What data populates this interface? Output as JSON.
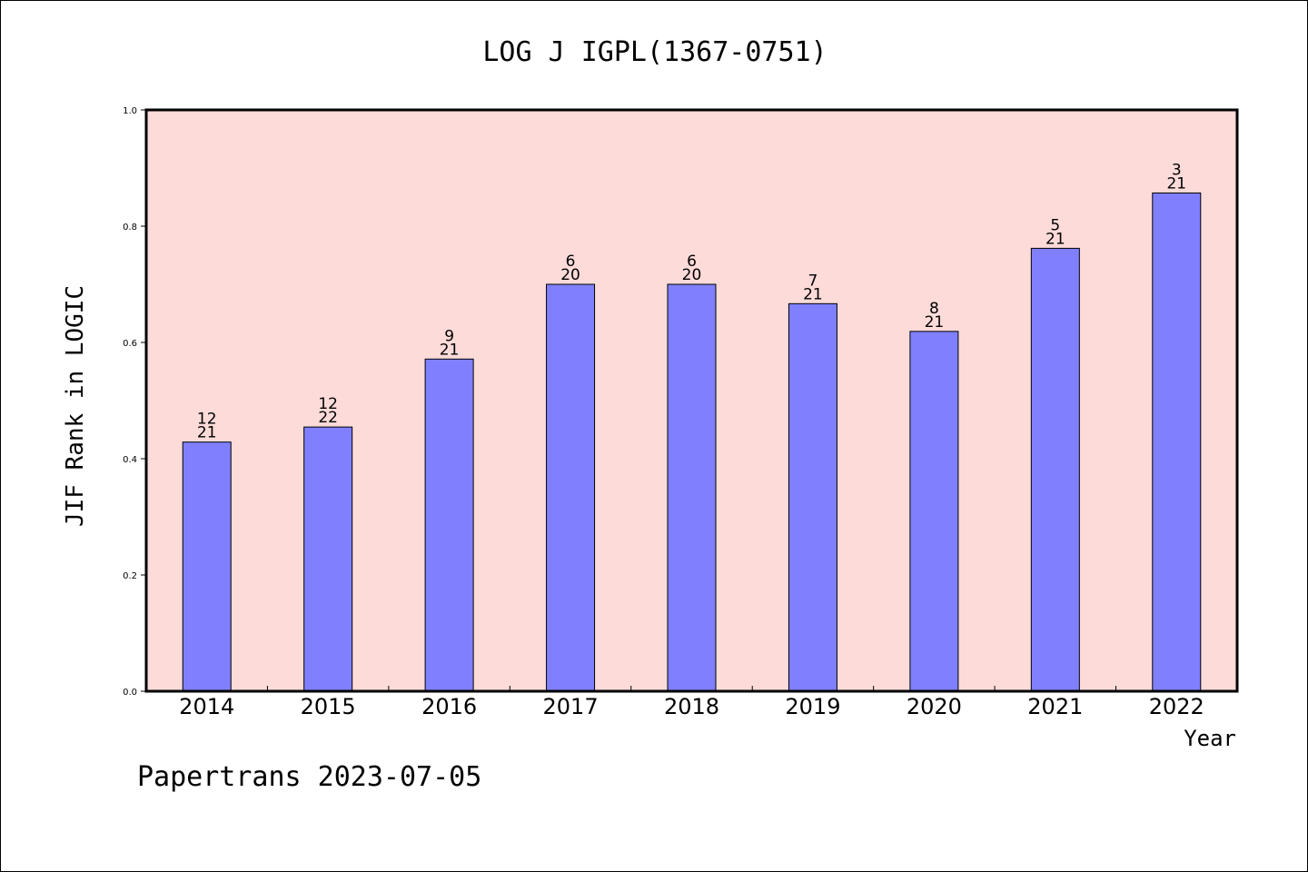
{
  "chart_data": {
    "type": "bar",
    "title": "LOG J IGPL(1367-0751)",
    "xlabel": "Year",
    "ylabel": "JIF Rank in LOGIC",
    "footer": "Papertrans 2023-07-05",
    "categories": [
      "2014",
      "2015",
      "2016",
      "2017",
      "2018",
      "2019",
      "2020",
      "2021",
      "2022"
    ],
    "values": [
      0.4286,
      0.4545,
      0.5714,
      0.7,
      0.7,
      0.6667,
      0.619,
      0.7619,
      0.8571
    ],
    "rank_labels": [
      {
        "rank": "12",
        "total": "21"
      },
      {
        "rank": "12",
        "total": "22"
      },
      {
        "rank": "9",
        "total": "21"
      },
      {
        "rank": "6",
        "total": "20"
      },
      {
        "rank": "6",
        "total": "20"
      },
      {
        "rank": "7",
        "total": "21"
      },
      {
        "rank": "8",
        "total": "21"
      },
      {
        "rank": "5",
        "total": "21"
      },
      {
        "rank": "3",
        "total": "21"
      }
    ],
    "ylim": [
      0.0,
      1.0
    ],
    "yticks": [
      "0.0",
      "0.2",
      "0.4",
      "0.6",
      "0.8",
      "1.0"
    ],
    "grid": false,
    "colors": {
      "bar": "#8080ff",
      "plot_background": "#fddbd9",
      "axis": "#000000"
    }
  }
}
